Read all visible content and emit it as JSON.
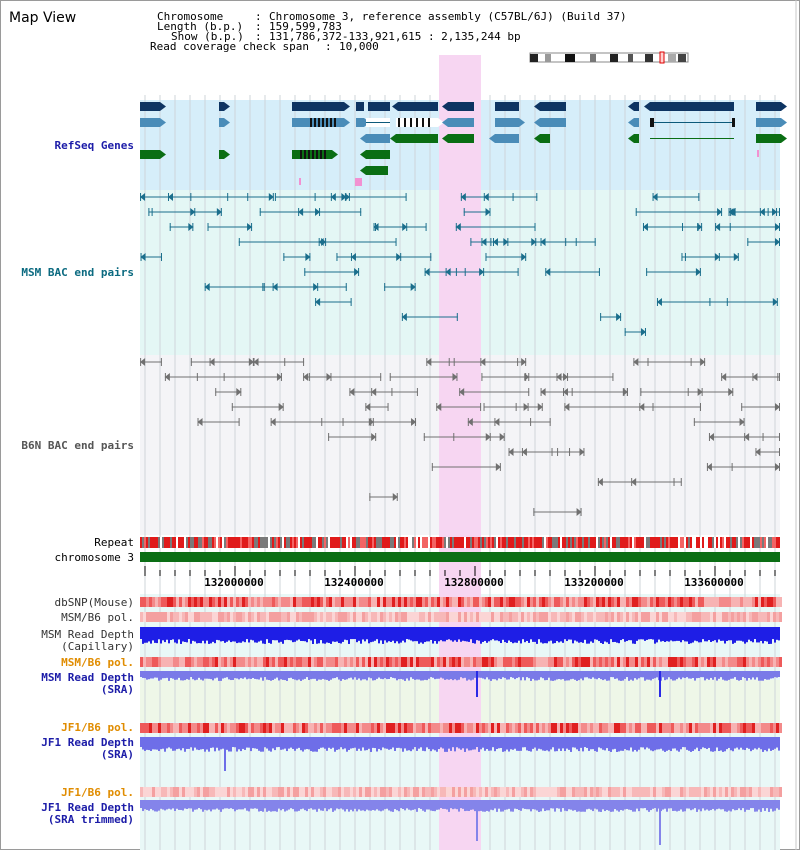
{
  "app": {
    "title": "Map View"
  },
  "header": {
    "chromosome_label": "Chromosome",
    "chromosome_value": "Chromosome 3, reference assembly (C57BL/6J) (Build 37)",
    "length_label": "Length (b.p.)",
    "length_value": "159,599,783",
    "show_label": "Show (b.p.)",
    "show_value": "131,786,372-133,921,615 : 2,135,244 bp",
    "coverage_label": "Read coverage check span",
    "coverage_value": "10,000"
  },
  "tracks": {
    "refseq": "RefSeq Genes",
    "msm_bac": "MSM BAC end pairs",
    "b6n_bac": "B6N BAC end pairs",
    "repeat": "Repeat",
    "chromosome": "chromosome 3",
    "dbsnp": "dbSNP(Mouse)",
    "msm_b6_pol_1": "MSM/B6 pol.",
    "msm_read_depth_cap_1": "MSM Read Depth",
    "msm_read_depth_cap_2": "(Capillary)",
    "msm_b6_pol_2": "MSM/B6 pol.",
    "msm_read_depth_sra_1": "MSM Read Depth",
    "msm_read_depth_sra_2": "(SRA)",
    "jf1_b6_pol_1": "JF1/B6 pol.",
    "jf1_read_depth_sra_1": "JF1 Read Depth",
    "jf1_read_depth_sra_2": "(SRA)",
    "jf1_b6_pol_2": "JF1/B6 pol.",
    "jf1_read_depth_trim_1": "JF1 Read Depth",
    "jf1_read_depth_trim_2": "(SRA trimmed)"
  },
  "axis": {
    "ticks": [
      "132000000",
      "132400000",
      "132800000",
      "133200000",
      "133600000"
    ]
  },
  "colors": {
    "highlight": "#f7d6f2",
    "refseq_bg": "#d6eefa",
    "gene_dark": "#0e3462",
    "gene_mid": "#4a8cb8",
    "gene_green": "#0a6e14",
    "bac_msm": "#1a6e8c",
    "bac_b6n": "#707070",
    "depth_blue": "#1e1ee0",
    "depth_light": "#7a7ae8",
    "label_blue": "#1c1ca8",
    "label_teal": "#0b6a80",
    "label_orange": "#e08c00"
  }
}
